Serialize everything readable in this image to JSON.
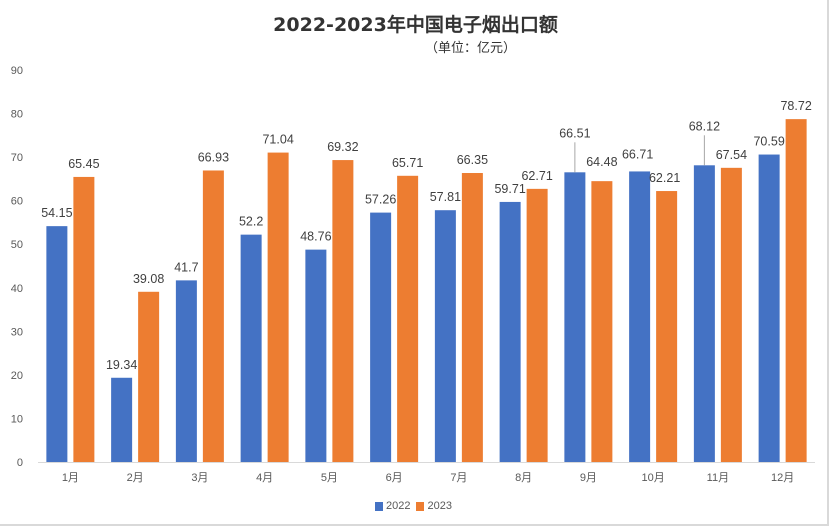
{
  "chart_data": {
    "type": "bar",
    "title": "2022-2023年中国电子烟出口额",
    "subtitle": "（单位：亿元）",
    "xlabel": "",
    "ylabel": "",
    "ylim": [
      0,
      90
    ],
    "yticks": [
      0,
      10,
      20,
      30,
      40,
      50,
      60,
      70,
      80,
      90
    ],
    "categories": [
      "1月",
      "2月",
      "3月",
      "4月",
      "5月",
      "6月",
      "7月",
      "8月",
      "9月",
      "10月",
      "11月",
      "12月"
    ],
    "series": [
      {
        "name": "2022",
        "color": "#4472c4",
        "values": [
          54.15,
          19.34,
          41.7,
          52.2,
          48.76,
          57.26,
          57.81,
          59.71,
          66.51,
          66.71,
          68.12,
          70.59
        ]
      },
      {
        "name": "2023",
        "color": "#ed7d31",
        "values": [
          65.45,
          39.08,
          66.93,
          71.04,
          69.32,
          65.71,
          66.35,
          62.71,
          64.48,
          62.21,
          67.54,
          78.72
        ]
      }
    ],
    "data_labels": {
      "2022": [
        "54.15",
        "19.34",
        "41.7",
        "52.2",
        "48.76",
        "57.26",
        "57.81",
        "59.71",
        "66.51",
        "66.71",
        "68.12",
        "70.59"
      ],
      "2023": [
        "65.45",
        "39.08",
        "66.93",
        "71.04",
        "69.32",
        "65.71",
        "66.35",
        "62.71",
        "64.48",
        "62.21",
        "67.54",
        "78.72"
      ]
    },
    "grid": false,
    "legend": "bottom-center"
  }
}
